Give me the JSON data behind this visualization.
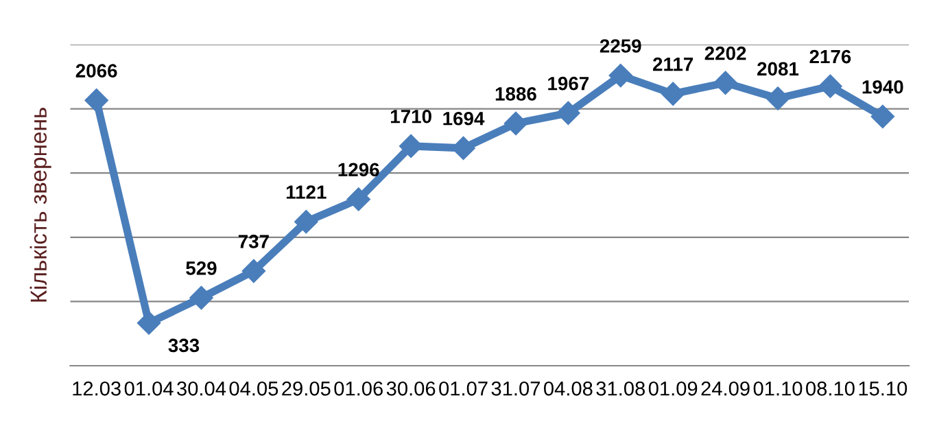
{
  "chart_data": {
    "type": "line",
    "ylabel": "Кількість звернень",
    "categories": [
      "12.03",
      "01.04",
      "30.04",
      "04.05",
      "29.05",
      "01.06",
      "30.06",
      "01.07",
      "31.07",
      "04.08",
      "31.08",
      "01.09",
      "24.09",
      "01.10",
      "08.10",
      "15.10"
    ],
    "series": [
      {
        "color": "#4a7ebb",
        "values": [
          2066,
          333,
          529,
          737,
          1121,
          1296,
          1710,
          1694,
          1886,
          1967,
          2259,
          2117,
          2202,
          2081,
          2176,
          1940
        ]
      }
    ],
    "ylim": [
      0,
      2500
    ],
    "yticks": [
      {
        "value": 0,
        "label": null
      },
      {
        "value": 500,
        "label": null
      },
      {
        "value": 1000,
        "label": null
      },
      {
        "value": 1500,
        "label": null
      },
      {
        "value": 2000,
        "label": null
      },
      {
        "value": 2500,
        "label": null
      }
    ],
    "grid": "y",
    "marker": "diamond",
    "line_style": "solid",
    "data_labels": true,
    "tick_labels": "x"
  }
}
